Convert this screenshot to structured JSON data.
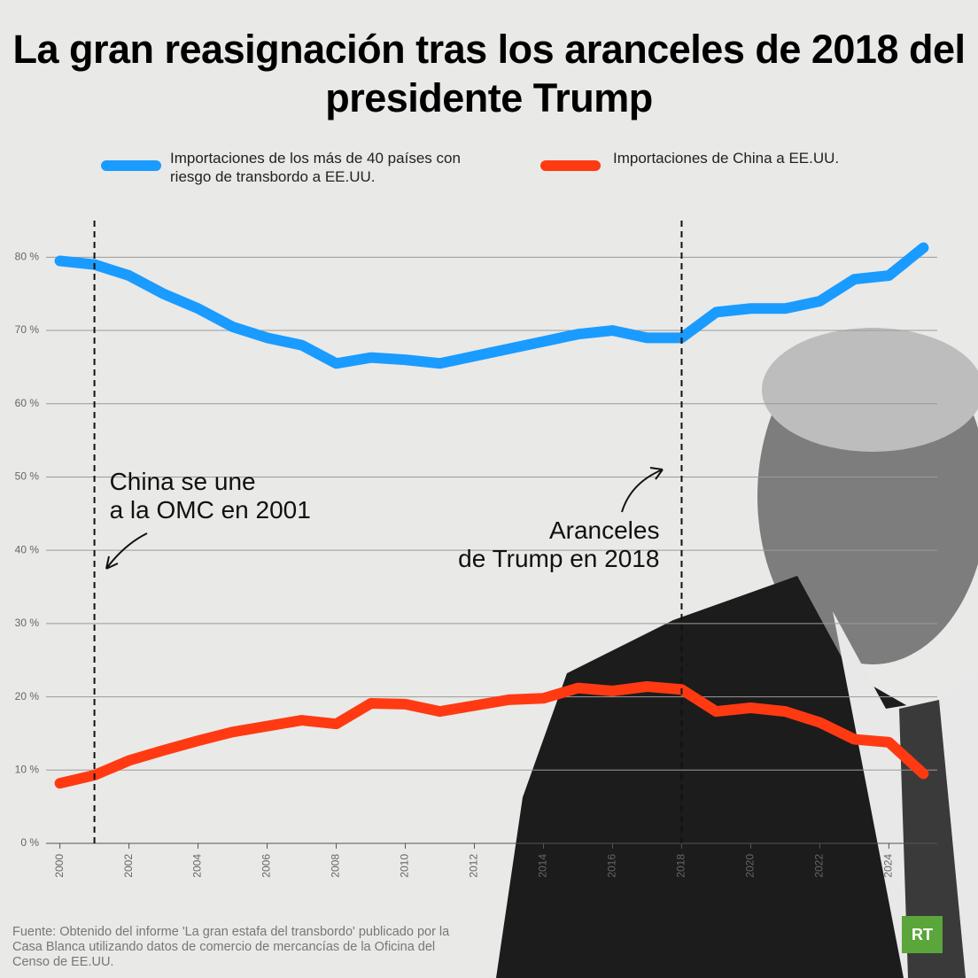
{
  "chart_data": {
    "type": "line",
    "title": "La gran reasignación tras los aranceles de 2018 del presidente Trump",
    "x": [
      2000,
      2001,
      2002,
      2003,
      2004,
      2005,
      2006,
      2007,
      2008,
      2009,
      2010,
      2011,
      2012,
      2013,
      2014,
      2015,
      2016,
      2017,
      2018,
      2019,
      2020,
      2021,
      2022,
      2023,
      2024,
      2025
    ],
    "series": [
      {
        "name": "Importaciones de los más de 40 países con riesgo de transbordo a EE.UU.",
        "color": "#1a9bff",
        "values": [
          79.5,
          79,
          77.5,
          75,
          73,
          70.5,
          69,
          68,
          65.5,
          66.3,
          66,
          65.5,
          66.5,
          67.5,
          68.5,
          69.5,
          70,
          69,
          69,
          72.5,
          73,
          73,
          74,
          77,
          77.5,
          81.3
        ]
      },
      {
        "name": "Importaciones de China a EE.UU.",
        "color": "#ff3a12",
        "values": [
          8.2,
          9.3,
          11.3,
          12.7,
          14,
          15.2,
          16,
          16.8,
          16.3,
          19.1,
          19,
          18,
          18.8,
          19.6,
          19.8,
          21.2,
          20.8,
          21.4,
          21,
          18,
          18.5,
          18,
          16.5,
          14.2,
          13.8,
          9.5
        ]
      }
    ],
    "xlim": [
      1999.6,
      2025.4
    ],
    "xticks": [
      2000,
      2002,
      2004,
      2006,
      2008,
      2010,
      2012,
      2014,
      2016,
      2018,
      2020,
      2022,
      2024
    ],
    "ylim": [
      0,
      85
    ],
    "yticks": [
      {
        "value": 0,
        "label": "0 %"
      },
      {
        "value": 10,
        "label": "10 %"
      },
      {
        "value": 20,
        "label": "20 %"
      },
      {
        "value": 30,
        "label": "30 %"
      },
      {
        "value": 40,
        "label": "40 %"
      },
      {
        "value": 50,
        "label": "50 %"
      },
      {
        "value": 60,
        "label": "60 %"
      },
      {
        "value": 70,
        "label": "70 %"
      },
      {
        "value": 80,
        "label": "80 %"
      }
    ],
    "grid": true,
    "events": [
      {
        "x": 2001,
        "label": [
          "China se une",
          "a la OMC en 2001"
        ]
      },
      {
        "x": 2018,
        "label": [
          "Aranceles",
          "de Trump en 2018"
        ]
      }
    ],
    "source": "Fuente: Obtenido del informe 'La gran estafa del transbordo' publicado por la Casa Blanca utilizando datos de comercio de mercancías de la Oficina del Censo de EE.UU."
  },
  "logo": "RT"
}
